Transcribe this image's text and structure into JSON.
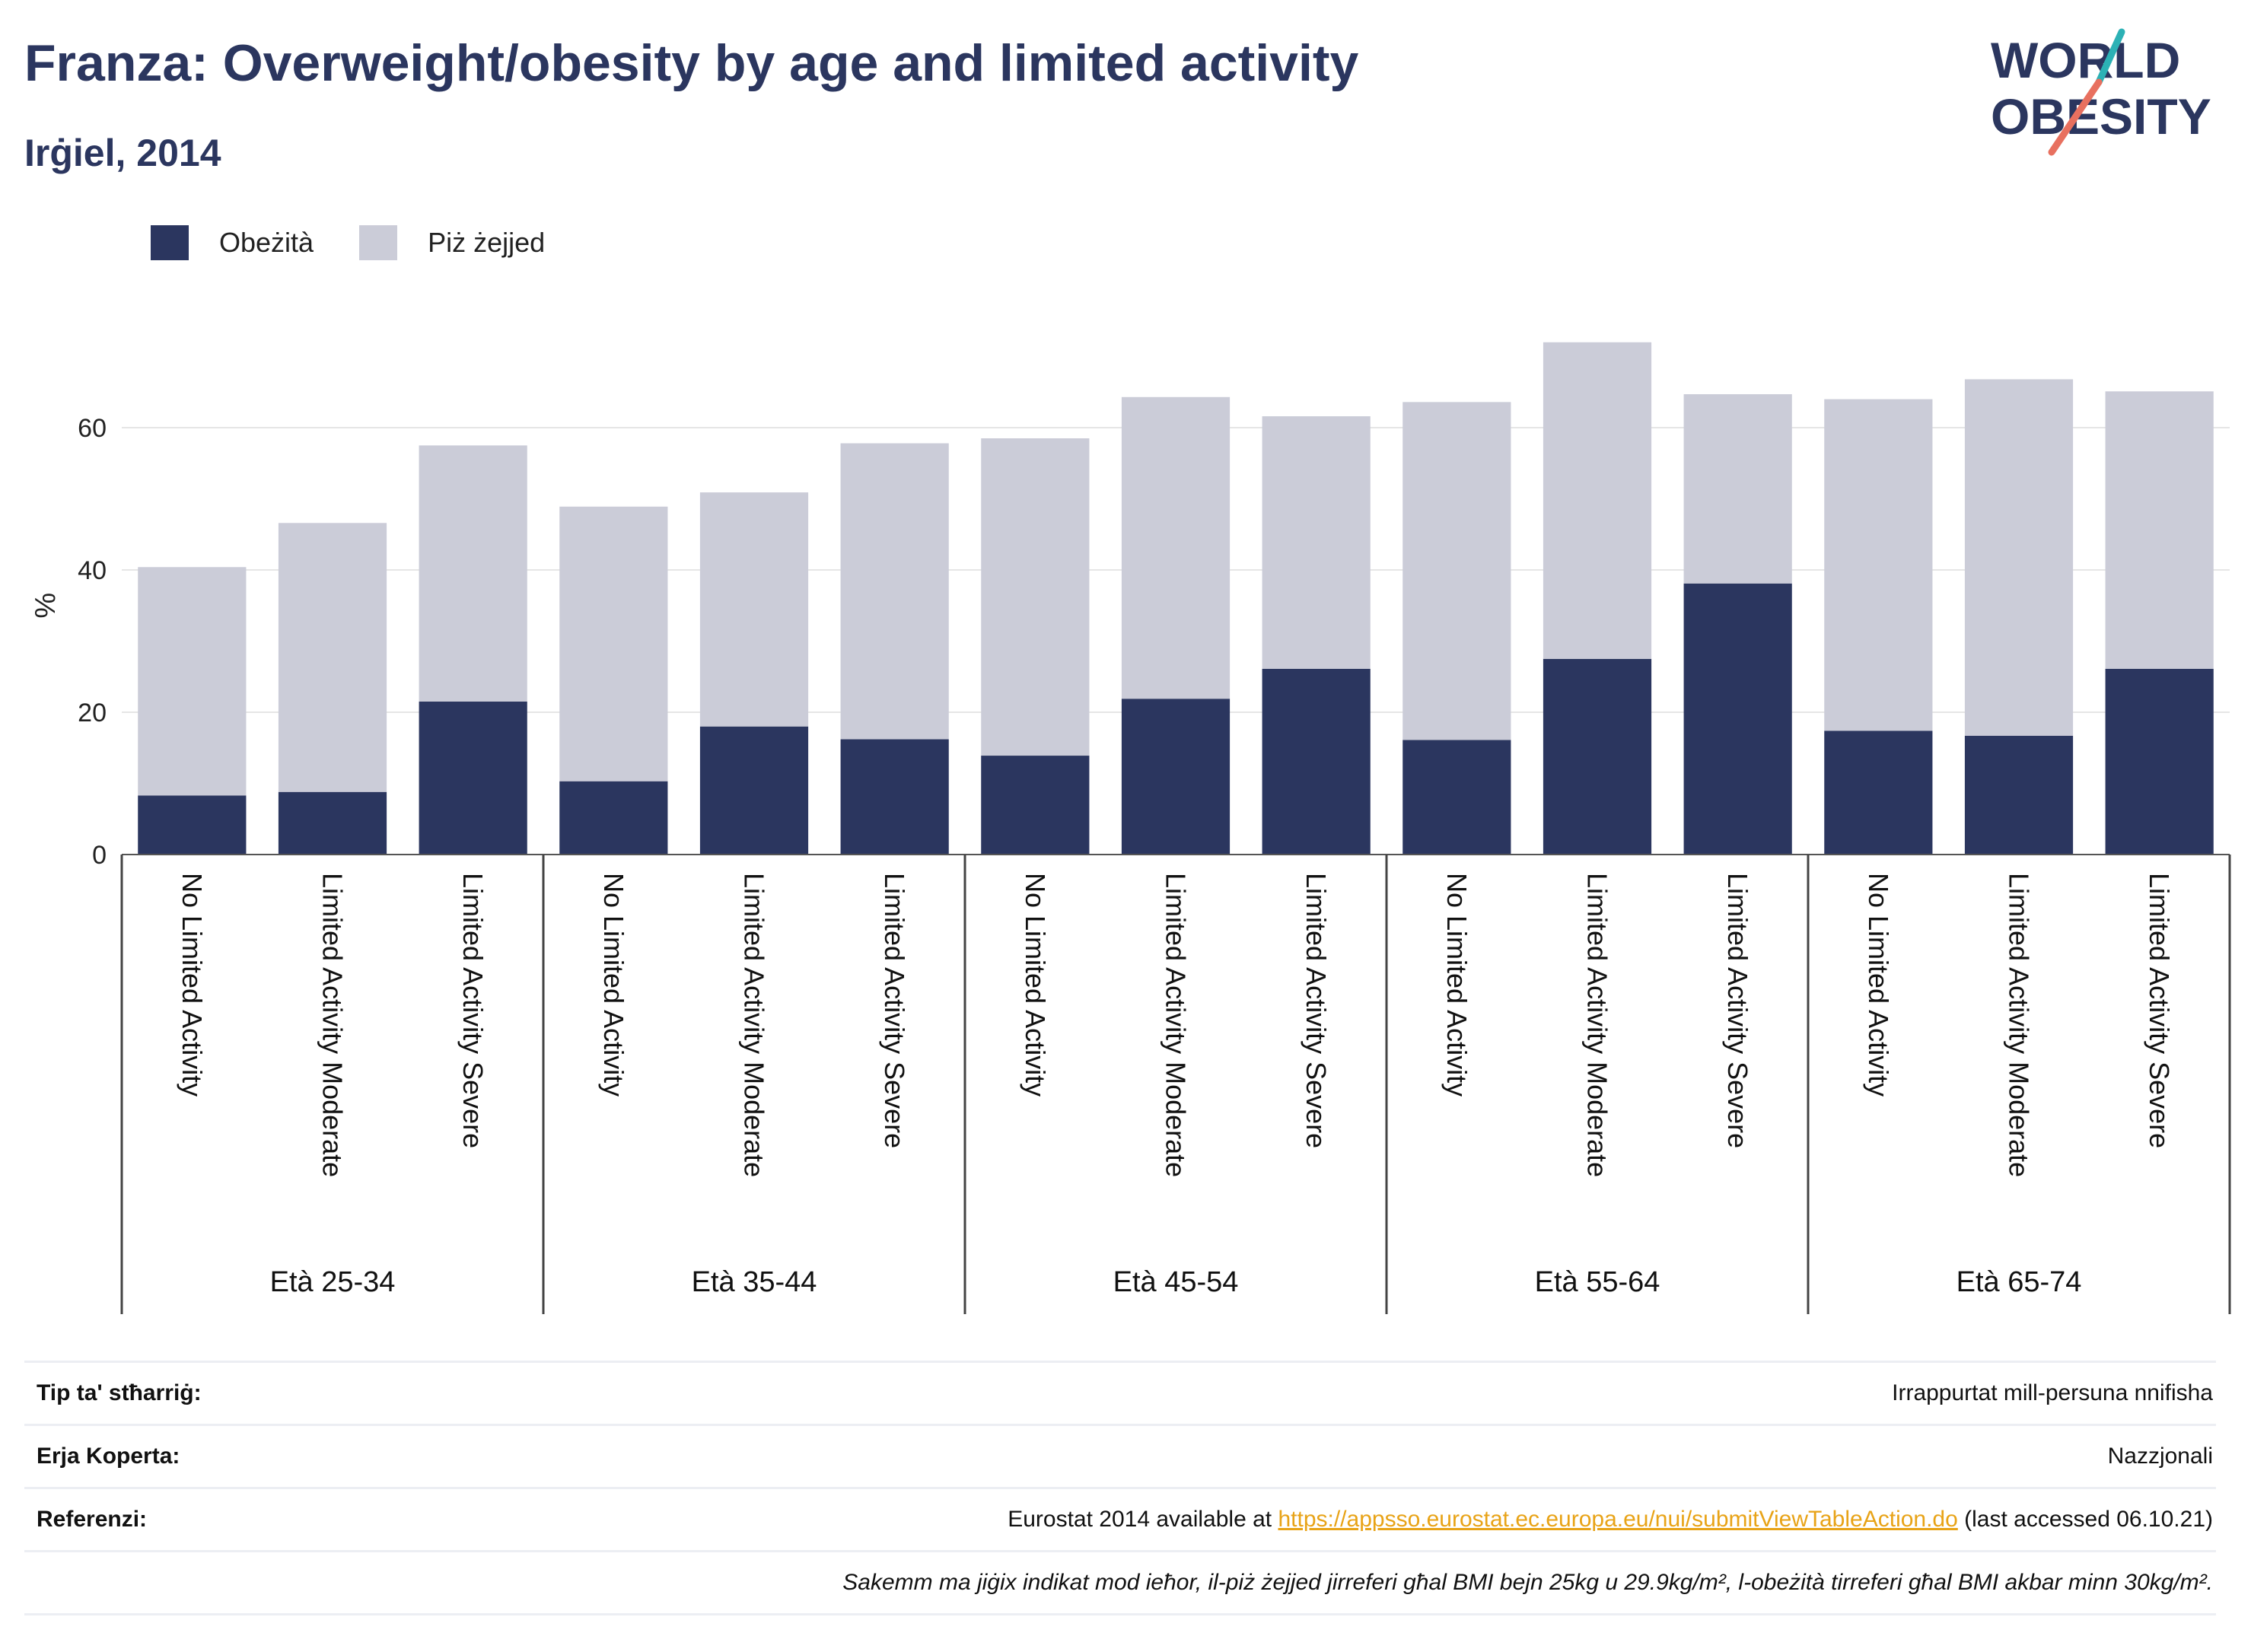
{
  "header": {
    "title": "Franza: Overweight/obesity by age and limited activity",
    "subtitle": "Irġiel, 2014"
  },
  "logo": {
    "line1": "WORLD",
    "line2": "OBESITY"
  },
  "colors": {
    "obesity": "#2b365f",
    "overweight": "#cbccd8",
    "grid": "#e6e6e6",
    "title": "#2b365f"
  },
  "legend": [
    {
      "label": "Obeżità",
      "color": "#2b365f"
    },
    {
      "label": "Piż żejjed",
      "color": "#cbccd8"
    }
  ],
  "chart_data": {
    "type": "bar",
    "stacked": true,
    "ylabel": "%",
    "ylim": [
      0,
      75
    ],
    "yticks": [
      0,
      20,
      40,
      60
    ],
    "grid": true,
    "legend_position": "top-left",
    "groups": [
      "Età 25-34",
      "Età 35-44",
      "Età 45-54",
      "Età 55-64",
      "Età 65-74"
    ],
    "categories": [
      "No Limited Activity",
      "Limited Activity Moderate",
      "Limited Activity Severe",
      "No Limited Activity",
      "Limited Activity Moderate",
      "Limited Activity Severe",
      "No Limited Activity",
      "Limited Activity Moderate",
      "Limited Activity Severe",
      "No Limited Activity",
      "Limited Activity Moderate",
      "Limited Activity Severe",
      "No Limited Activity",
      "Limited Activity Moderate",
      "Limited Activity Severe"
    ],
    "series": [
      {
        "name": "Obeżità",
        "values": [
          8.3,
          8.8,
          21.5,
          10.3,
          18.0,
          16.2,
          13.9,
          21.9,
          26.1,
          16.1,
          27.5,
          38.1,
          17.4,
          16.7,
          26.1
        ]
      },
      {
        "name": "Piż żejjed",
        "values": [
          32.1,
          37.8,
          36.0,
          38.6,
          32.9,
          41.6,
          44.6,
          42.4,
          35.5,
          47.5,
          44.5,
          26.6,
          46.6,
          50.1,
          39.0
        ]
      }
    ]
  },
  "meta": {
    "survey_label": "Tip ta' stħarriġ:",
    "survey_value": "Irrappurtat mill-persuna nnifisha",
    "area_label": "Erja Koperta:",
    "area_value": "Nazzjonali",
    "ref_label": "Referenzi:",
    "ref_prefix": "Eurostat 2014 available at ",
    "ref_link": "https://appsso.eurostat.ec.europa.eu/nui/submitViewTableAction.do",
    "ref_suffix": " (last accessed 06.10.21)",
    "note": "Sakemm ma jiġix indikat mod ieħor, il-piż żejjed jirreferi għal BMI bejn 25kg u 29.9kg/m², l-obeżità tirreferi għal BMI akbar minn 30kg/m²."
  }
}
